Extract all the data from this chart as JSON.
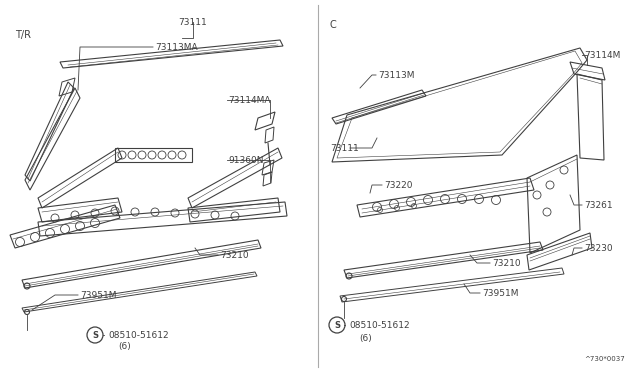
{
  "bg_color": "#ffffff",
  "line_color": "#404040",
  "text_color": "#404040",
  "part_number_ref": "^730*0037",
  "left_label": "T/R",
  "right_label": "C",
  "fs_label": 6.5,
  "fs_ref": 5.5
}
